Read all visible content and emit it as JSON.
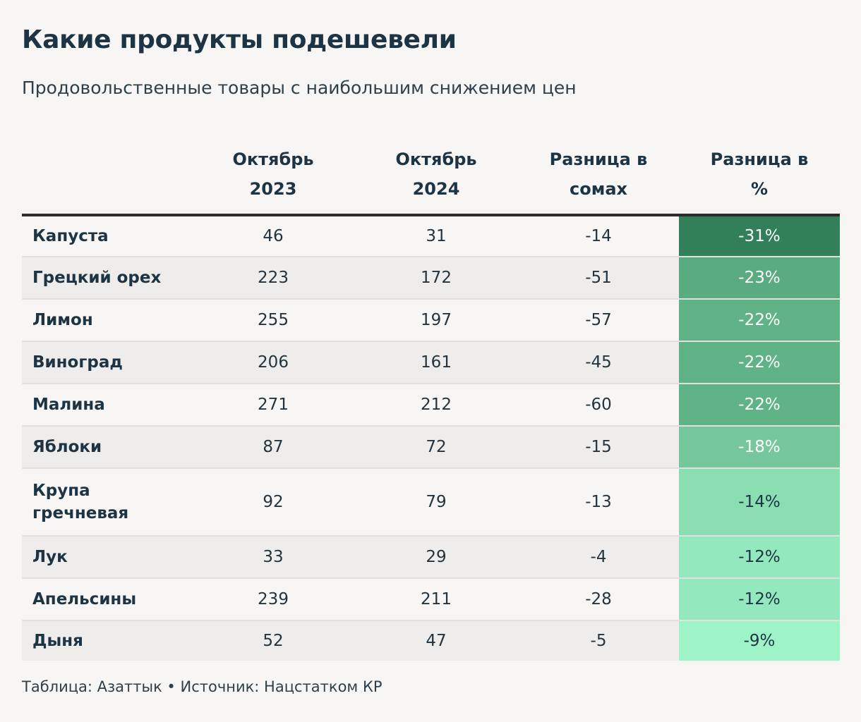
{
  "title": "Какие продукты подешевели",
  "subtitle": "Продовольственные товары с наибольшим снижением цен",
  "chart_data": {
    "type": "table",
    "columns": [
      {
        "lines": [
          "",
          ""
        ]
      },
      {
        "lines": [
          "Октябрь",
          "2023"
        ]
      },
      {
        "lines": [
          "Октябрь",
          "2024"
        ]
      },
      {
        "lines": [
          "Разница в",
          "сомах"
        ]
      },
      {
        "lines": [
          "Разница в",
          "%"
        ]
      }
    ],
    "rows": [
      {
        "name": "Капуста",
        "oct2023": 46,
        "oct2024": 31,
        "diff": "-14",
        "pct": "-31%",
        "color": "#32805a"
      },
      {
        "name": "Грецкий орех",
        "oct2023": 223,
        "oct2024": 172,
        "diff": "-51",
        "pct": "-23%",
        "color": "#5aab80"
      },
      {
        "name": "Лимон",
        "oct2023": 255,
        "oct2024": 197,
        "diff": "-57",
        "pct": "-22%",
        "color": "#60b287"
      },
      {
        "name": "Виноград",
        "oct2023": 206,
        "oct2024": 161,
        "diff": "-45",
        "pct": "-22%",
        "color": "#60b287"
      },
      {
        "name": "Малина",
        "oct2023": 271,
        "oct2024": 212,
        "diff": "-60",
        "pct": "-22%",
        "color": "#60b287"
      },
      {
        "name": "Яблоки",
        "oct2023": 87,
        "oct2024": 72,
        "diff": "-15",
        "pct": "-18%",
        "color": "#76c79b"
      },
      {
        "name": "Крупа гречневая",
        "oct2023": 92,
        "oct2024": 79,
        "diff": "-13",
        "pct": "-14%",
        "color": "#8bdeb2"
      },
      {
        "name": "Лук",
        "oct2023": 33,
        "oct2024": 29,
        "diff": "-4",
        "pct": "-12%",
        "color": "#94e8bd"
      },
      {
        "name": "Апельсины",
        "oct2023": 239,
        "oct2024": 211,
        "diff": "-28",
        "pct": "-12%",
        "color": "#94e8bd"
      },
      {
        "name": "Дыня",
        "oct2023": 52,
        "oct2024": 47,
        "diff": "-5",
        "pct": "-9%",
        "color": "#9ef4c6"
      }
    ]
  },
  "footer": "Таблица: Азаттык • Источник: Нацстатком КР",
  "colors": {
    "background": "#f8f6f4",
    "stripe": "#efedeb",
    "text": "#1c3443"
  }
}
